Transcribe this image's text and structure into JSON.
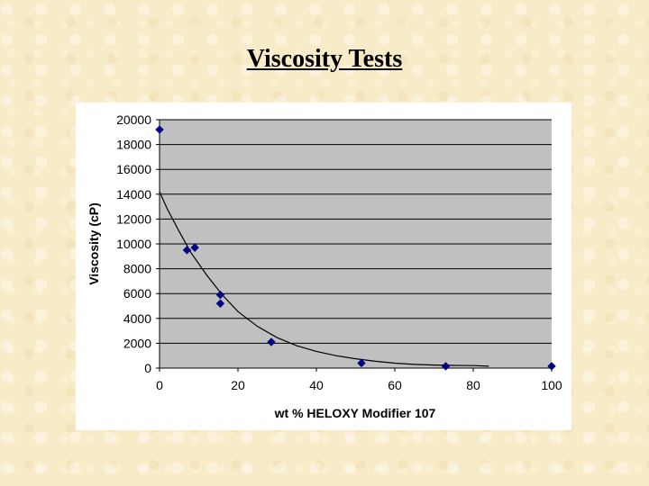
{
  "slide": {
    "title": "Viscosity Tests"
  },
  "chart_data": {
    "type": "scatter",
    "title": "",
    "xlabel": "wt % HELOXY Modifier 107",
    "ylabel": "Viscosity  (cP)",
    "xlim": [
      0,
      100
    ],
    "ylim": [
      0,
      20000
    ],
    "xticks": [
      0,
      20,
      40,
      60,
      80,
      100
    ],
    "yticks": [
      0,
      2000,
      4000,
      6000,
      8000,
      10000,
      12000,
      14000,
      16000,
      18000,
      20000
    ],
    "grid": "horizontal",
    "plot_background": "#c0c0c0",
    "series": [
      {
        "marker_color": "#000080",
        "points": [
          [
            0,
            19200
          ],
          [
            7,
            9500
          ],
          [
            9,
            9700
          ],
          [
            15.5,
            5900
          ],
          [
            15.5,
            5200
          ],
          [
            28.5,
            2100
          ],
          [
            51.5,
            400
          ],
          [
            73,
            150
          ],
          [
            100,
            150
          ]
        ]
      }
    ],
    "trendline": {
      "type": "fitted curve",
      "points": [
        [
          0,
          14200
        ],
        [
          2,
          12800
        ],
        [
          5,
          11000
        ],
        [
          8,
          9300
        ],
        [
          12,
          7500
        ],
        [
          16,
          5900
        ],
        [
          20,
          4550
        ],
        [
          25,
          3350
        ],
        [
          30,
          2450
        ],
        [
          35,
          1800
        ],
        [
          40,
          1350
        ],
        [
          45,
          1000
        ],
        [
          50,
          750
        ],
        [
          55,
          550
        ],
        [
          60,
          400
        ],
        [
          65,
          300
        ],
        [
          70,
          250
        ],
        [
          75,
          220
        ],
        [
          80,
          200
        ],
        [
          84,
          150
        ]
      ]
    }
  }
}
